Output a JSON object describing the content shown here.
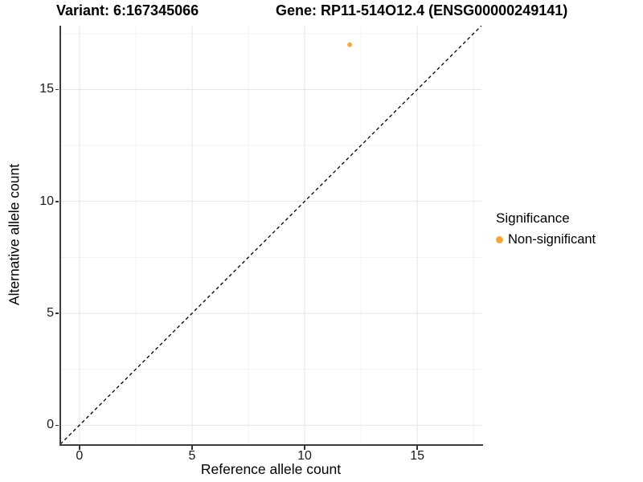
{
  "chart_data": {
    "type": "scatter",
    "title_left": "Variant: 6:167345066",
    "title_right": "Gene: RP11-514O12.4 (ENSG00000249141)",
    "xlabel": "Reference allele count",
    "ylabel": "Alternative allele count",
    "xlim": [
      -0.85,
      17.85
    ],
    "ylim": [
      -0.85,
      17.85
    ],
    "x_ticks": [
      0,
      5,
      10,
      15
    ],
    "y_ticks": [
      0,
      5,
      10,
      15
    ],
    "x_minor_ticks": [
      2.5,
      7.5,
      12.5,
      17.5
    ],
    "y_minor_ticks": [
      2.5,
      7.5,
      12.5,
      17.5
    ],
    "grid": true,
    "series": [
      {
        "name": "Non-significant",
        "color": "#FAA43A",
        "points": [
          {
            "x": 12,
            "y": 17
          }
        ]
      }
    ],
    "reference_line": {
      "slope": 1,
      "intercept": 0,
      "style": "dashed",
      "color": "#000000"
    },
    "legend": {
      "title": "Significance",
      "position": "right",
      "entries": [
        {
          "label": "Non-significant",
          "color": "#FAA43A"
        }
      ]
    },
    "colors": {
      "grid_major": "#E7E7E7",
      "grid_minor": "#F3F3F3",
      "axis_line": "#3d3d3d",
      "background": "#ffffff"
    }
  }
}
